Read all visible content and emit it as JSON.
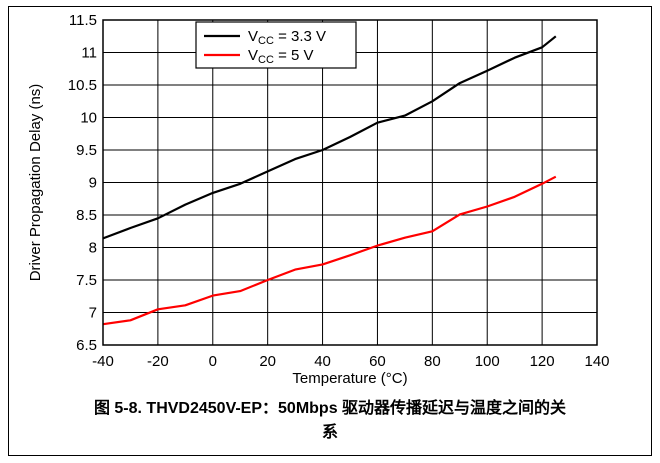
{
  "chart_data": {
    "type": "line",
    "xlabel": "Temperature (°C)",
    "ylabel": "Driver Propagation Delay (ns)",
    "xlim": [
      -40,
      140
    ],
    "ylim": [
      6.5,
      11.5
    ],
    "x_ticks": [
      -40,
      -20,
      0,
      20,
      40,
      60,
      80,
      100,
      120,
      140
    ],
    "x_tick_labels": [
      "-40",
      "-20",
      "0",
      "20",
      "40",
      "60",
      "80",
      "100",
      "120",
      "140"
    ],
    "y_ticks": [
      6.5,
      7,
      7.5,
      8,
      8.5,
      9,
      9.5,
      10,
      10.5,
      11,
      11.5
    ],
    "y_tick_labels": [
      "6.5",
      "7",
      "7.5",
      "8",
      "8.5",
      "9",
      "9.5",
      "10",
      "10.5",
      "11",
      "11.5"
    ],
    "grid": true,
    "legend_position": "top-center",
    "series": [
      {
        "name": "VCC = 3.3 V",
        "legend_main": "V",
        "legend_sub": "CC",
        "legend_rest": " = 3.3 V",
        "color": "#000000",
        "x": [
          -40,
          -30,
          -20,
          -10,
          0,
          10,
          20,
          30,
          40,
          50,
          60,
          70,
          80,
          90,
          100,
          110,
          120,
          125
        ],
        "y": [
          8.14,
          8.3,
          8.45,
          8.66,
          8.84,
          8.98,
          9.17,
          9.36,
          9.5,
          9.7,
          9.92,
          10.03,
          10.25,
          10.53,
          10.72,
          10.92,
          11.08,
          11.25
        ]
      },
      {
        "name": "VCC = 5 V",
        "legend_main": "V",
        "legend_sub": "CC",
        "legend_rest": " = 5 V",
        "color": "#ff0000",
        "x": [
          -40,
          -30,
          -20,
          -10,
          0,
          10,
          20,
          30,
          40,
          50,
          60,
          70,
          80,
          90,
          100,
          110,
          120,
          125
        ],
        "y": [
          6.82,
          6.88,
          7.05,
          7.11,
          7.26,
          7.33,
          7.5,
          7.66,
          7.74,
          7.88,
          8.03,
          8.15,
          8.25,
          8.51,
          8.63,
          8.78,
          8.98,
          9.09
        ]
      }
    ]
  },
  "caption": {
    "line1": "图 5-8. THVD2450V-EP：50Mbps 驱动器传播延迟与温度之间的关",
    "line2": "系"
  }
}
